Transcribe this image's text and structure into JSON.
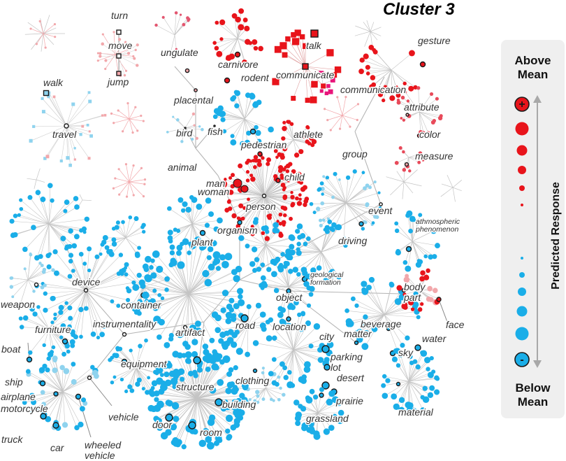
{
  "title": "Cluster 3",
  "legend": {
    "top_label": [
      "Above",
      "Mean"
    ],
    "bottom_label": [
      "Below",
      "Mean"
    ],
    "axis_label": "Predicted Response",
    "plus_symbol": "+",
    "minus_symbol": "-",
    "colors": {
      "above": "#e8141b",
      "below": "#1aaee8"
    }
  },
  "labels": [
    {
      "id": "turn",
      "text": "turn"
    },
    {
      "id": "move",
      "text": "move"
    },
    {
      "id": "jump",
      "text": "jump"
    },
    {
      "id": "talk",
      "text": "talk"
    },
    {
      "id": "gesture",
      "text": "gesture"
    },
    {
      "id": "ungulate",
      "text": "ungulate"
    },
    {
      "id": "carnivore",
      "text": "carnivore"
    },
    {
      "id": "rodent",
      "text": "rodent"
    },
    {
      "id": "communicate",
      "text": "communicate"
    },
    {
      "id": "communication",
      "text": "communication"
    },
    {
      "id": "walk",
      "text": "walk"
    },
    {
      "id": "placental",
      "text": "placental"
    },
    {
      "id": "attribute",
      "text": "attribute"
    },
    {
      "id": "bird",
      "text": "bird"
    },
    {
      "id": "fish",
      "text": "fish"
    },
    {
      "id": "athlete",
      "text": "athlete"
    },
    {
      "id": "color",
      "text": "color"
    },
    {
      "id": "travel",
      "text": "travel"
    },
    {
      "id": "pedestrian",
      "text": "pedestrian"
    },
    {
      "id": "group",
      "text": "group"
    },
    {
      "id": "measure",
      "text": "measure"
    },
    {
      "id": "animal",
      "text": "animal"
    },
    {
      "id": "man",
      "text": "man"
    },
    {
      "id": "child",
      "text": "child"
    },
    {
      "id": "woman",
      "text": "woman"
    },
    {
      "id": "person",
      "text": "person"
    },
    {
      "id": "event",
      "text": "event"
    },
    {
      "id": "atmospheric_phenomenon",
      "text": "athmospheric phenomenon"
    },
    {
      "id": "organism",
      "text": "organism"
    },
    {
      "id": "driving",
      "text": "driving"
    },
    {
      "id": "plant",
      "text": "plant"
    },
    {
      "id": "geological_formation",
      "text": "geological formation"
    },
    {
      "id": "device",
      "text": "device"
    },
    {
      "id": "body_part",
      "text": "body part"
    },
    {
      "id": "weapon",
      "text": "weapon"
    },
    {
      "id": "object",
      "text": "object"
    },
    {
      "id": "container",
      "text": "container"
    },
    {
      "id": "instrumentality",
      "text": "instrumentality"
    },
    {
      "id": "road",
      "text": "road"
    },
    {
      "id": "beverage",
      "text": "beverage"
    },
    {
      "id": "face",
      "text": "face"
    },
    {
      "id": "location",
      "text": "location"
    },
    {
      "id": "furniture",
      "text": "furniture"
    },
    {
      "id": "artifact",
      "text": "artifact"
    },
    {
      "id": "matter",
      "text": "matter"
    },
    {
      "id": "water",
      "text": "water"
    },
    {
      "id": "city",
      "text": "city"
    },
    {
      "id": "boat",
      "text": "boat"
    },
    {
      "id": "sky",
      "text": "sky"
    },
    {
      "id": "equipment",
      "text": "equipment"
    },
    {
      "id": "parking_lot",
      "text": "parking lot"
    },
    {
      "id": "ship",
      "text": "ship"
    },
    {
      "id": "clothing",
      "text": "clothing"
    },
    {
      "id": "desert",
      "text": "desert"
    },
    {
      "id": "structure",
      "text": "structure"
    },
    {
      "id": "airplane",
      "text": "airplane"
    },
    {
      "id": "building",
      "text": "building"
    },
    {
      "id": "prairie",
      "text": "prairie"
    },
    {
      "id": "motorcycle",
      "text": "motorcycle"
    },
    {
      "id": "vehicle",
      "text": "vehicle"
    },
    {
      "id": "material",
      "text": "material"
    },
    {
      "id": "door",
      "text": "door"
    },
    {
      "id": "room",
      "text": "room"
    },
    {
      "id": "grassland",
      "text": "grassland"
    },
    {
      "id": "truck",
      "text": "truck"
    },
    {
      "id": "car",
      "text": "car"
    },
    {
      "id": "wheeled_vehicle",
      "text": "wheeled vehicle"
    }
  ]
}
